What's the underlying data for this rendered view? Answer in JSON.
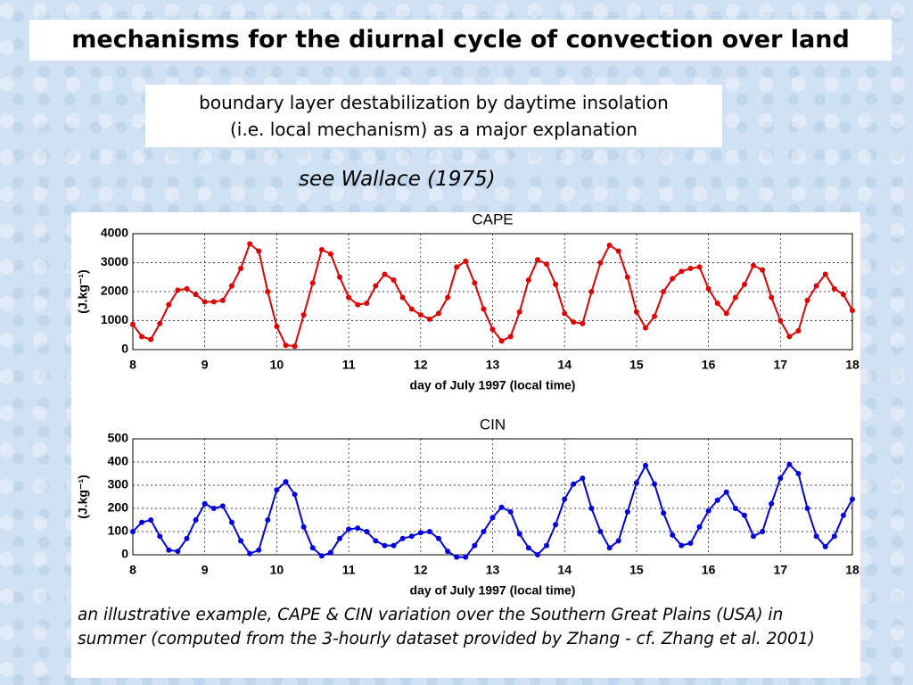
{
  "title": "mechanisms for the diurnal cycle of convection over land",
  "subtitle": [
    "boundary layer destabilization by daytime insolation",
    "(i.e. local mechanism) as a major explanation"
  ],
  "reference": "see Wallace (1975)",
  "caption": "an illustrative example, CAPE & CIN variation over the Southern Great Plains (USA) in summer (computed from the 3-hourly dataset provided by Zhang - cf. Zhang et al. 2001)",
  "chart_data": [
    {
      "type": "line",
      "title": "CAPE",
      "x_label": "day of July 1997 (local time)",
      "y_label": "(J.kg⁻¹)",
      "color": "#e00000",
      "grid": true,
      "xlim": [
        8,
        18
      ],
      "xticks": [
        8,
        9,
        10,
        11,
        12,
        13,
        14,
        15,
        16,
        17,
        18
      ],
      "ylim": [
        0,
        4000
      ],
      "yticks": [
        0,
        1000,
        2000,
        3000,
        4000
      ],
      "x": [
        8,
        8.125,
        8.25,
        8.375,
        8.5,
        8.625,
        8.75,
        8.875,
        9,
        9.125,
        9.25,
        9.375,
        9.5,
        9.625,
        9.75,
        9.875,
        10,
        10.125,
        10.25,
        10.375,
        10.5,
        10.625,
        10.75,
        10.875,
        11,
        11.125,
        11.25,
        11.375,
        11.5,
        11.625,
        11.75,
        11.875,
        12,
        12.125,
        12.25,
        12.375,
        12.5,
        12.625,
        12.75,
        12.875,
        13,
        13.125,
        13.25,
        13.375,
        13.5,
        13.625,
        13.75,
        13.875,
        14,
        14.125,
        14.25,
        14.375,
        14.5,
        14.625,
        14.75,
        14.875,
        15,
        15.125,
        15.25,
        15.375,
        15.5,
        15.625,
        15.75,
        15.875,
        16,
        16.125,
        16.25,
        16.375,
        16.5,
        16.625,
        16.75,
        16.875,
        17,
        17.125,
        17.25,
        17.375,
        17.5,
        17.625,
        17.75,
        17.875,
        18
      ],
      "values": [
        870,
        450,
        350,
        900,
        1550,
        2050,
        2100,
        1900,
        1650,
        1650,
        1700,
        2200,
        2800,
        3650,
        3400,
        2000,
        800,
        150,
        120,
        1200,
        2300,
        3450,
        3300,
        2500,
        1800,
        1550,
        1600,
        2200,
        2600,
        2400,
        1800,
        1400,
        1200,
        1050,
        1250,
        1800,
        2850,
        3050,
        2300,
        1400,
        700,
        300,
        450,
        1300,
        2400,
        3100,
        2950,
        2250,
        1250,
        950,
        900,
        2000,
        3000,
        3600,
        3400,
        2500,
        1300,
        750,
        1150,
        2000,
        2450,
        2700,
        2800,
        2850,
        2100,
        1600,
        1250,
        1800,
        2250,
        2900,
        2750,
        1800,
        1000,
        450,
        650,
        1700,
        2200,
        2600,
        2100,
        1900,
        1350
      ]
    },
    {
      "type": "line",
      "title": "CIN",
      "x_label": "day of July 1997 (local time)",
      "y_label": "(J.kg⁻¹)",
      "color": "#0000e0",
      "grid": true,
      "xlim": [
        8,
        18
      ],
      "xticks": [
        8,
        9,
        10,
        11,
        12,
        13,
        14,
        15,
        16,
        17,
        18
      ],
      "ylim": [
        0,
        500
      ],
      "yticks": [
        0,
        100,
        200,
        300,
        400,
        500
      ],
      "x": [
        8,
        8.125,
        8.25,
        8.375,
        8.5,
        8.625,
        8.75,
        8.875,
        9,
        9.125,
        9.25,
        9.375,
        9.5,
        9.625,
        9.75,
        9.875,
        10,
        10.125,
        10.25,
        10.375,
        10.5,
        10.625,
        10.75,
        10.875,
        11,
        11.125,
        11.25,
        11.375,
        11.5,
        11.625,
        11.75,
        11.875,
        12,
        12.125,
        12.25,
        12.375,
        12.5,
        12.625,
        12.75,
        12.875,
        13,
        13.125,
        13.25,
        13.375,
        13.5,
        13.625,
        13.75,
        13.875,
        14,
        14.125,
        14.25,
        14.375,
        14.5,
        14.625,
        14.75,
        14.875,
        15,
        15.125,
        15.25,
        15.375,
        15.5,
        15.625,
        15.75,
        15.875,
        16,
        16.125,
        16.25,
        16.375,
        16.5,
        16.625,
        16.75,
        16.875,
        17,
        17.125,
        17.25,
        17.375,
        17.5,
        17.625,
        17.75,
        17.875,
        18
      ],
      "values": [
        100,
        140,
        150,
        80,
        20,
        15,
        70,
        150,
        220,
        200,
        210,
        140,
        60,
        5,
        20,
        150,
        280,
        315,
        260,
        120,
        30,
        -5,
        10,
        70,
        110,
        115,
        100,
        60,
        40,
        40,
        70,
        80,
        95,
        100,
        70,
        15,
        -10,
        -10,
        40,
        100,
        160,
        205,
        185,
        90,
        30,
        0,
        40,
        130,
        240,
        305,
        330,
        200,
        100,
        30,
        60,
        185,
        310,
        385,
        305,
        180,
        85,
        40,
        50,
        120,
        190,
        235,
        270,
        200,
        170,
        80,
        100,
        220,
        330,
        390,
        350,
        200,
        80,
        35,
        80,
        170,
        240
      ]
    }
  ]
}
